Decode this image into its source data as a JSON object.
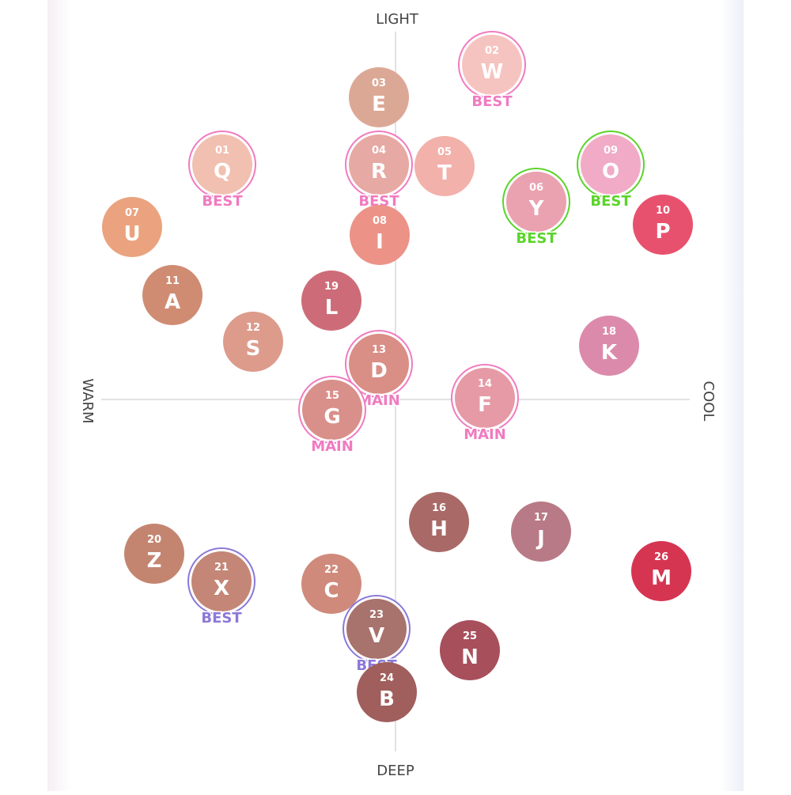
{
  "axes": {
    "top": "LIGHT",
    "bottom": "DEEP",
    "left": "WARM",
    "right": "COOL"
  },
  "nodes": [
    {
      "number": "01",
      "letter": "Q",
      "tag": "BEST"
    },
    {
      "number": "02",
      "letter": "W",
      "tag": "BEST"
    },
    {
      "number": "03",
      "letter": "E"
    },
    {
      "number": "04",
      "letter": "R",
      "tag": "BEST"
    },
    {
      "number": "05",
      "letter": "T"
    },
    {
      "number": "06",
      "letter": "Y",
      "tag": "BEST"
    },
    {
      "number": "07",
      "letter": "U"
    },
    {
      "number": "08",
      "letter": "I"
    },
    {
      "number": "09",
      "letter": "O",
      "tag": "BEST"
    },
    {
      "number": "10",
      "letter": "P"
    },
    {
      "number": "11",
      "letter": "A"
    },
    {
      "number": "12",
      "letter": "S"
    },
    {
      "number": "13",
      "letter": "D",
      "tag": "MAIN"
    },
    {
      "number": "14",
      "letter": "F",
      "tag": "MAIN"
    },
    {
      "number": "15",
      "letter": "G",
      "tag": "MAIN"
    },
    {
      "number": "16",
      "letter": "H"
    },
    {
      "number": "17",
      "letter": "J"
    },
    {
      "number": "18",
      "letter": "K"
    },
    {
      "number": "19",
      "letter": "L"
    },
    {
      "number": "20",
      "letter": "Z"
    },
    {
      "number": "21",
      "letter": "X",
      "tag": "BEST"
    },
    {
      "number": "22",
      "letter": "C"
    },
    {
      "number": "23",
      "letter": "V",
      "tag": "BEST"
    },
    {
      "number": "24",
      "letter": "B"
    },
    {
      "number": "25",
      "letter": "N"
    },
    {
      "number": "26",
      "letter": "M"
    }
  ]
}
